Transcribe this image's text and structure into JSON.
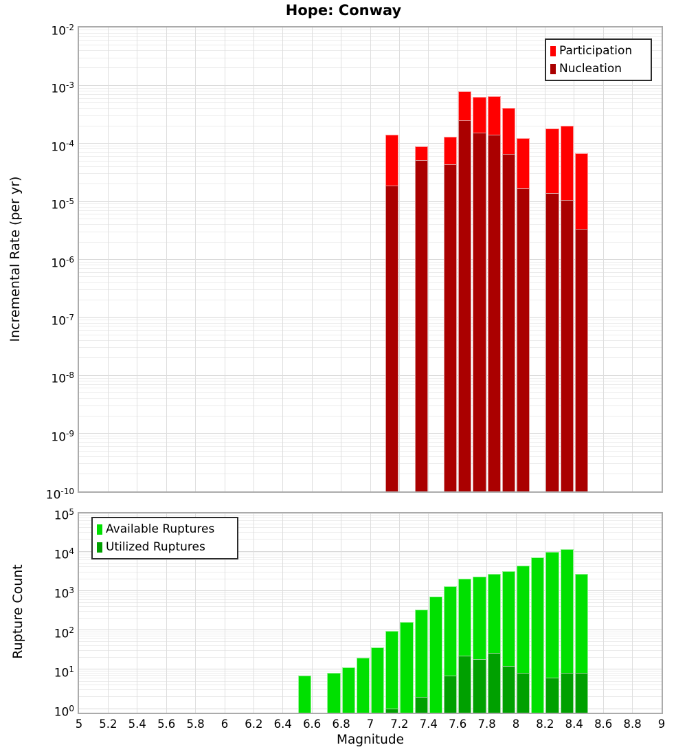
{
  "title": "Hope: Conway",
  "chart_data": [
    {
      "type": "bar",
      "title": "Hope: Conway",
      "ylabel": "Incremental Rate (per yr)",
      "xlabel": "",
      "yscale": "log",
      "ylim": [
        1e-10,
        0.01
      ],
      "xlim": [
        5,
        9
      ],
      "grid": true,
      "legend_position": "top-right",
      "bin_width": 0.1,
      "y_tick_exponents": [
        -2,
        -3,
        -4,
        -5,
        -6,
        -7,
        -8,
        -9,
        -10
      ],
      "categories": [
        7.15,
        7.35,
        7.55,
        7.65,
        7.75,
        7.85,
        7.95,
        8.05,
        8.25,
        8.35,
        8.45
      ],
      "series": [
        {
          "name": "Participation",
          "color": "#ff0000",
          "values": [
            0.00014,
            8.8e-05,
            0.00013,
            0.0008,
            0.00063,
            0.00066,
            0.00041,
            0.000125,
            0.00018,
            0.0002,
            6.8e-05
          ]
        },
        {
          "name": "Nucleation",
          "color": "#aa0000",
          "values": [
            1.9e-05,
            5.1e-05,
            4.4e-05,
            0.00025,
            0.000155,
            0.00014,
            6.6e-05,
            1.7e-05,
            1.4e-05,
            1.05e-05,
            3.4e-06
          ]
        }
      ]
    },
    {
      "type": "bar",
      "title": "",
      "ylabel": "Rupture Count",
      "xlabel": "Magnitude",
      "yscale": "log",
      "ylim": [
        1,
        100000.0
      ],
      "xlim": [
        5,
        9
      ],
      "grid": true,
      "legend_position": "top-left",
      "bin_width": 0.1,
      "y_tick_exponents": [
        0,
        1,
        2,
        3,
        4,
        5
      ],
      "x_tick_labels": [
        "5",
        "5.2",
        "5.4",
        "5.6",
        "5.8",
        "6",
        "6.2",
        "6.4",
        "6.6",
        "6.8",
        "7",
        "7.2",
        "7.4",
        "7.6",
        "7.8",
        "8",
        "8.2",
        "8.4",
        "8.6",
        "8.8",
        "9"
      ],
      "categories": [
        6.55,
        6.75,
        6.85,
        6.95,
        7.05,
        7.15,
        7.25,
        7.35,
        7.45,
        7.55,
        7.65,
        7.75,
        7.85,
        7.95,
        8.05,
        8.15,
        8.25,
        8.35,
        8.45
      ],
      "series": [
        {
          "name": "Available Ruptures",
          "color": "#00e000",
          "values": [
            7,
            8,
            11,
            20,
            36,
            95,
            160,
            330,
            700,
            1300,
            2000,
            2300,
            2700,
            3200,
            4300,
            7000,
            9800,
            11400,
            2700
          ]
        },
        {
          "name": "Utilized Ruptures",
          "color": "#00a000",
          "values": [
            0,
            0,
            0,
            0,
            0,
            1,
            0,
            2,
            0,
            7,
            22,
            18,
            26,
            12,
            8,
            0,
            6,
            8,
            8
          ]
        }
      ]
    }
  ]
}
